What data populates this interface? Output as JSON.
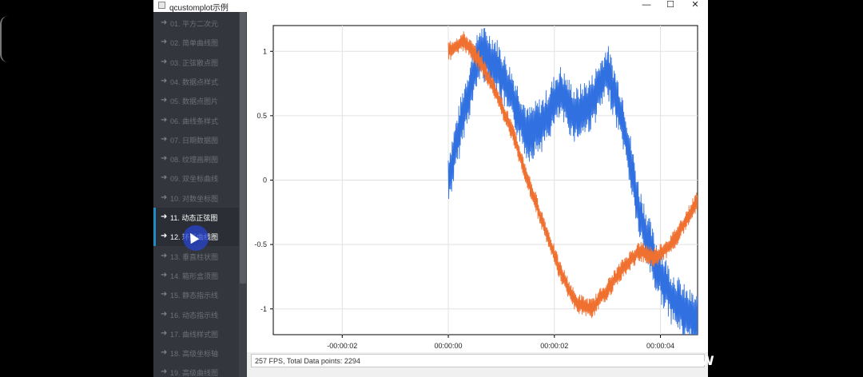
{
  "window": {
    "title": "qcustomplot示例"
  },
  "controls": {
    "minimize": "—",
    "maximize": "☐",
    "close": "✕"
  },
  "sidebar": {
    "items": [
      {
        "label": "01. 平方二次元",
        "active": false
      },
      {
        "label": "02. 简单曲线图",
        "active": false
      },
      {
        "label": "03. 正弦散点图",
        "active": false
      },
      {
        "label": "04. 数据点样式",
        "active": false
      },
      {
        "label": "05. 数据点图片",
        "active": false
      },
      {
        "label": "06. 曲线条样式",
        "active": false
      },
      {
        "label": "07. 日期数据图",
        "active": false
      },
      {
        "label": "08. 纹理画刷图",
        "active": false
      },
      {
        "label": "09. 双坐标曲线",
        "active": false
      },
      {
        "label": "10. 对数坐标图",
        "active": false
      },
      {
        "label": "11. 动态正弦图",
        "active": true
      },
      {
        "label": "12. 环形曲线图",
        "active": true
      },
      {
        "label": "13. 垂直柱状图",
        "active": false
      },
      {
        "label": "14. 箱形盒须图",
        "active": false
      },
      {
        "label": "15. 静态指示线",
        "active": false
      },
      {
        "label": "16. 动态指示线",
        "active": false
      },
      {
        "label": "17. 曲线样式图",
        "active": false
      },
      {
        "label": "18. 高级坐标轴",
        "active": false
      },
      {
        "label": "19. 高级曲线图",
        "active": false
      }
    ]
  },
  "status_text": "257 FPS, Total Data points: 2294",
  "corner_text": "W",
  "chart_data": {
    "type": "line",
    "title": "",
    "xlabel": "",
    "ylabel": "",
    "x_tick_labels": [
      "-00:00:02",
      "00:00:00",
      "00:00:02",
      "00:00:04"
    ],
    "y_tick_labels": [
      "1",
      "0.5",
      "0",
      "-0.5",
      "-1"
    ],
    "xlim_seconds": [
      -3.3,
      4.7
    ],
    "ylim": [
      -1.2,
      1.2
    ],
    "grid": true,
    "series": [
      {
        "color": "#3070e0",
        "x_seconds": [
          0.0,
          0.3,
          0.6,
          0.9,
          1.2,
          1.5,
          1.8,
          2.1,
          2.4,
          2.7,
          3.0,
          3.3,
          3.6,
          3.9,
          4.2,
          4.5,
          4.7
        ],
        "values": [
          0.0,
          0.55,
          1.0,
          0.9,
          0.65,
          0.35,
          0.45,
          0.68,
          0.5,
          0.6,
          0.85,
          0.45,
          -0.25,
          -0.65,
          -0.9,
          -1.05,
          -1.1
        ],
        "noise_amplitude": 0.22
      },
      {
        "color": "#f07030",
        "x_seconds": [
          0.0,
          0.3,
          0.6,
          0.9,
          1.2,
          1.5,
          1.8,
          2.1,
          2.4,
          2.7,
          3.0,
          3.3,
          3.6,
          3.9,
          4.2,
          4.5,
          4.7
        ],
        "values": [
          1.0,
          1.08,
          0.92,
          0.68,
          0.38,
          0.0,
          -0.35,
          -0.7,
          -0.95,
          -1.0,
          -0.85,
          -0.68,
          -0.55,
          -0.6,
          -0.5,
          -0.3,
          -0.15
        ],
        "noise_amplitude": 0.08
      }
    ]
  }
}
